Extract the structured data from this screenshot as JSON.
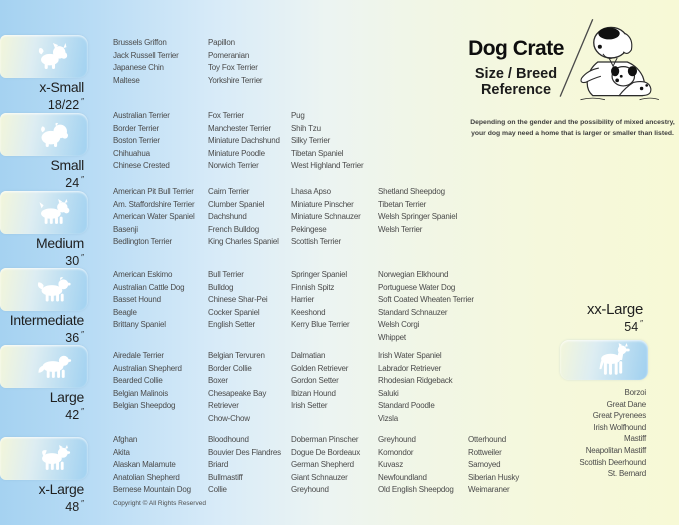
{
  "header": {
    "title": "Dog Crate",
    "subtitle_line1": "Size / Breed",
    "subtitle_line2": "Reference",
    "disclaimer_line1": "Depending on the gender and the possibility of mixed ancestry,",
    "disclaimer_line2": "your dog may need a home that is larger or smaller than listed."
  },
  "inch_mark": "″",
  "footer": {
    "copyright": "Copyright © All Rights Reserved"
  },
  "sizes": [
    {
      "label": "x-Small",
      "inches": "18/22",
      "columns": [
        [
          "Brussels Griffon",
          "Jack Russell Terrier",
          "Japanese Chin",
          "Maltese"
        ],
        [
          "Papillon",
          "Pomeranian",
          "Toy Fox Terrier",
          "Yorkshire Terrier"
        ]
      ]
    },
    {
      "label": "Small",
      "inches": "24",
      "columns": [
        [
          "Australian Terrier",
          "Border Terrier",
          "Boston Terrier",
          "Chihuahua",
          "Chinese Crested"
        ],
        [
          "Fox Terrier",
          "Manchester Terrier",
          "Miniature Dachshund",
          "Miniature Poodle",
          "Norwich Terrier"
        ],
        [
          "Pug",
          "Shih Tzu",
          "Silky Terrier",
          "Tibetan Spaniel",
          "West Highland Terrier"
        ]
      ]
    },
    {
      "label": "Medium",
      "inches": "30",
      "columns": [
        [
          "American Pit Bull Terrier",
          "Am. Staffordshire Terrier",
          "American Water Spaniel",
          "Basenji",
          "Bedlington Terrier"
        ],
        [
          "Cairn Terrier",
          "Clumber Spaniel",
          "Dachshund",
          "French Bulldog",
          "King Charles Spaniel"
        ],
        [
          "Lhasa Apso",
          "Miniature Pinscher",
          "Miniature Schnauzer",
          "Pekingese",
          "Scottish Terrier"
        ],
        [
          "Shetland Sheepdog",
          "Tibetan Terrier",
          "Welsh Springer Spaniel",
          "Welsh Terrier"
        ]
      ]
    },
    {
      "label": "Intermediate",
      "inches": "36",
      "columns": [
        [
          "American Eskimo",
          "Australian Cattle Dog",
          "Basset Hound",
          "Beagle",
          "Brittany Spaniel"
        ],
        [
          "Bull Terrier",
          "Bulldog",
          "Chinese Shar-Pei",
          "Cocker Spaniel",
          "English Setter"
        ],
        [
          "Springer Spaniel",
          "Finnish Spitz",
          "Harrier",
          "Keeshond",
          "Kerry Blue Terrier"
        ],
        [
          "Norwegian Elkhound",
          "Portuguese Water Dog",
          "Soft Coated Wheaten Terrier",
          "Standard Schnauzer",
          "Welsh Corgi",
          "Whippet"
        ]
      ]
    },
    {
      "label": "Large",
      "inches": "42",
      "columns": [
        [
          "Airedale Terrier",
          "Australian Shepherd",
          "Bearded Collie",
          "Belgian Malinois",
          "Belgian Sheepdog"
        ],
        [
          "Belgian Tervuren",
          "Border Collie",
          "Boxer",
          "Chesapeake Bay Retriever",
          "Chow-Chow"
        ],
        [
          "Dalmatian",
          "Golden Retriever",
          "Gordon Setter",
          "Ibizan Hound",
          "Irish Setter"
        ],
        [
          "Irish Water Spaniel",
          "Labrador Retriever",
          "Rhodesian Ridgeback",
          "Saluki",
          "Standard Poodle",
          "Vizsla"
        ]
      ]
    },
    {
      "label": "x-Large",
      "inches": "48",
      "columns": [
        [
          "Afghan",
          "Akita",
          "Alaskan Malamute",
          "Anatolian Shepherd",
          "Bernese Mountain Dog"
        ],
        [
          "Bloodhound",
          "Bouvier Des Flandres",
          "Briard",
          "Bullmastiff",
          "Collie"
        ],
        [
          "Doberman Pinscher",
          "Dogue De Bordeaux",
          "German Shepherd",
          "Giant Schnauzer",
          "Greyhound"
        ],
        [
          "Greyhound",
          "Komondor",
          "Kuvasz",
          "Newfoundland",
          "Old English Sheepdog"
        ],
        [
          "Otterhound",
          "Rottweiler",
          "Samoyed",
          "Siberian Husky",
          "Weimaraner"
        ]
      ]
    }
  ],
  "xx_large": {
    "label": "xx-Large",
    "inches": "54",
    "breeds": [
      "Borzoi",
      "Great Dane",
      "Great Pyrenees",
      "Irish Wolfhound",
      "Mastiff",
      "Neapolitan Mastiff",
      "Scottish Deerhound",
      "St. Bernard"
    ]
  },
  "icons": {
    "badge_icons": "white-dog-silhouette-icon",
    "header_art": "teacher-dog-with-puppy-illustration"
  },
  "colors": {
    "background_left": "#a5d2f1",
    "background_right": "#f7f9d6",
    "badge_cream": "#f3f6da",
    "badge_blue": "#9fd0f0",
    "breed_text": "#4b4b4b",
    "label_text": "#1f1f1f"
  }
}
